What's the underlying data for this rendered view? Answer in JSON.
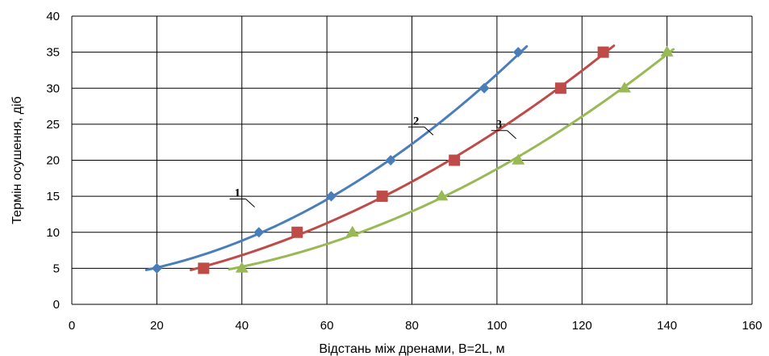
{
  "chart_data": {
    "type": "line",
    "xlabel": "Відстань між дренами, B=2L, м",
    "ylabel": "Термін осушення, діб",
    "xlim": [
      0,
      160
    ],
    "ylim": [
      0,
      40
    ],
    "xticks": [
      0,
      20,
      40,
      60,
      80,
      100,
      120,
      140,
      160
    ],
    "yticks": [
      0,
      5,
      10,
      15,
      20,
      25,
      30,
      35,
      40
    ],
    "grid": true,
    "series": [
      {
        "label": "1",
        "color": "#4a7ebb",
        "marker": "diamond",
        "points": [
          [
            20,
            5
          ],
          [
            44,
            10
          ],
          [
            61,
            15
          ],
          [
            75,
            20
          ],
          [
            97,
            30
          ],
          [
            105,
            35
          ]
        ],
        "fit_range": [
          17.5,
          107
        ],
        "label_at": [
          43,
          13.5
        ]
      },
      {
        "label": "2",
        "color": "#be4b48",
        "marker": "square",
        "points": [
          [
            31,
            5
          ],
          [
            53,
            10
          ],
          [
            73,
            15
          ],
          [
            90,
            20
          ],
          [
            115,
            30
          ],
          [
            125,
            35
          ]
        ],
        "fit_range": [
          28,
          127.5
        ],
        "label_at": [
          85,
          23.5
        ]
      },
      {
        "label": "3",
        "color": "#98b954",
        "marker": "triangle",
        "points": [
          [
            40,
            5
          ],
          [
            66,
            10
          ],
          [
            87,
            15
          ],
          [
            105,
            20
          ],
          [
            130,
            30
          ],
          [
            140,
            35
          ]
        ],
        "fit_range": [
          37,
          141.5
        ],
        "label_at": [
          104.5,
          23
        ]
      }
    ]
  }
}
